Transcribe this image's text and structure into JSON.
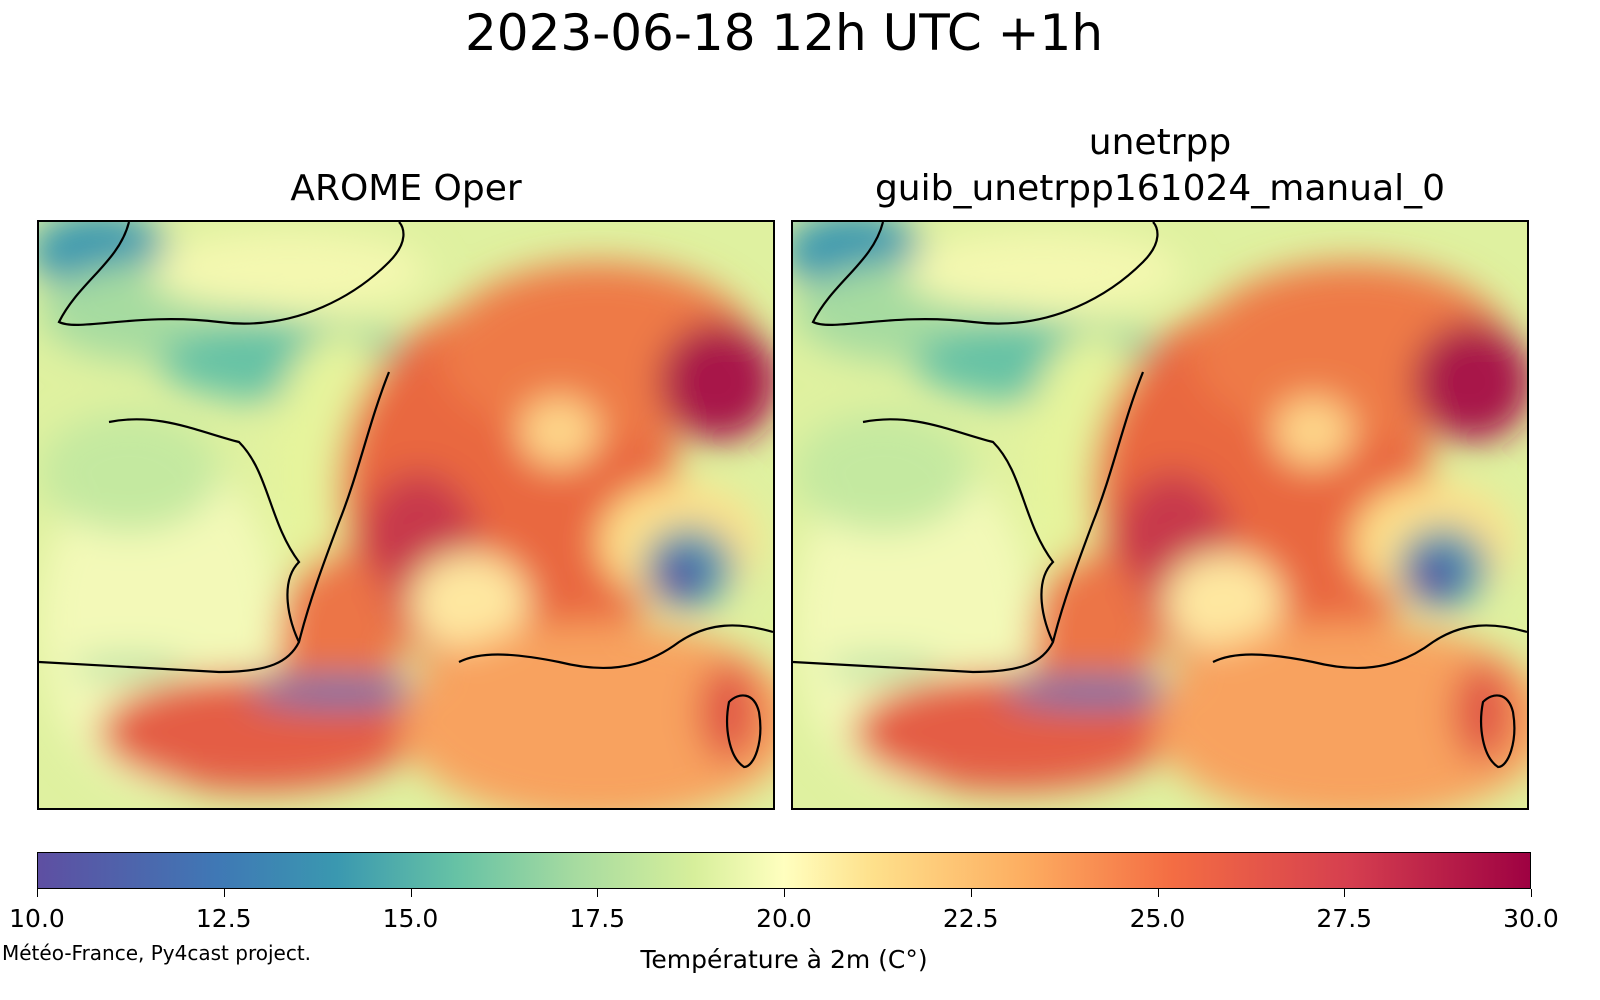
{
  "title": "2023-06-18 12h UTC +1h",
  "panels": [
    {
      "title_lines": [
        "AROME Oper"
      ]
    },
    {
      "title_lines": [
        "unetrpp",
        "guib_unetrpp161024_manual_0"
      ]
    }
  ],
  "colorbar": {
    "label": "Température à 2m (C°)",
    "min": 10.0,
    "max": 30.0,
    "ticks": [
      "10.0",
      "12.5",
      "15.0",
      "17.5",
      "20.0",
      "22.5",
      "25.0",
      "27.5",
      "30.0"
    ],
    "colormap": [
      "#5e4fa2",
      "#3f78b5",
      "#3a98b0",
      "#66c2a5",
      "#a6dba0",
      "#d7ef9b",
      "#ffffbf",
      "#fee08b",
      "#fdae61",
      "#f46d43",
      "#d53e4f",
      "#9e0142"
    ]
  },
  "credit": "Météo-France, Py4cast project."
}
